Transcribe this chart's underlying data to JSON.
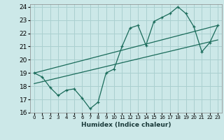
{
  "title": "",
  "xlabel": "Humidex (Indice chaleur)",
  "background_color": "#cce8e8",
  "grid_color": "#aad0d0",
  "line_color": "#1a6b5a",
  "xlim": [
    -0.5,
    23.5
  ],
  "ylim": [
    16,
    24.2
  ],
  "xticks": [
    0,
    1,
    2,
    3,
    4,
    5,
    6,
    7,
    8,
    9,
    10,
    11,
    12,
    13,
    14,
    15,
    16,
    17,
    18,
    19,
    20,
    21,
    22,
    23
  ],
  "yticks": [
    16,
    17,
    18,
    19,
    20,
    21,
    22,
    23,
    24
  ],
  "curve1_x": [
    0,
    1,
    2,
    3,
    4,
    5,
    6,
    7,
    8,
    9,
    10,
    11,
    12,
    13,
    14,
    15,
    16,
    17,
    18,
    19,
    20,
    21,
    22,
    23
  ],
  "curve1_y": [
    19.0,
    18.7,
    17.9,
    17.3,
    17.7,
    17.8,
    17.1,
    16.3,
    16.8,
    19.0,
    19.3,
    21.0,
    22.4,
    22.6,
    21.1,
    22.9,
    23.2,
    23.5,
    24.0,
    23.5,
    22.5,
    20.6,
    21.3,
    22.6
  ],
  "curve2_x": [
    0,
    23
  ],
  "curve2_y": [
    18.2,
    21.5
  ],
  "curve3_x": [
    0,
    23
  ],
  "curve3_y": [
    19.0,
    22.6
  ],
  "marker": "+"
}
